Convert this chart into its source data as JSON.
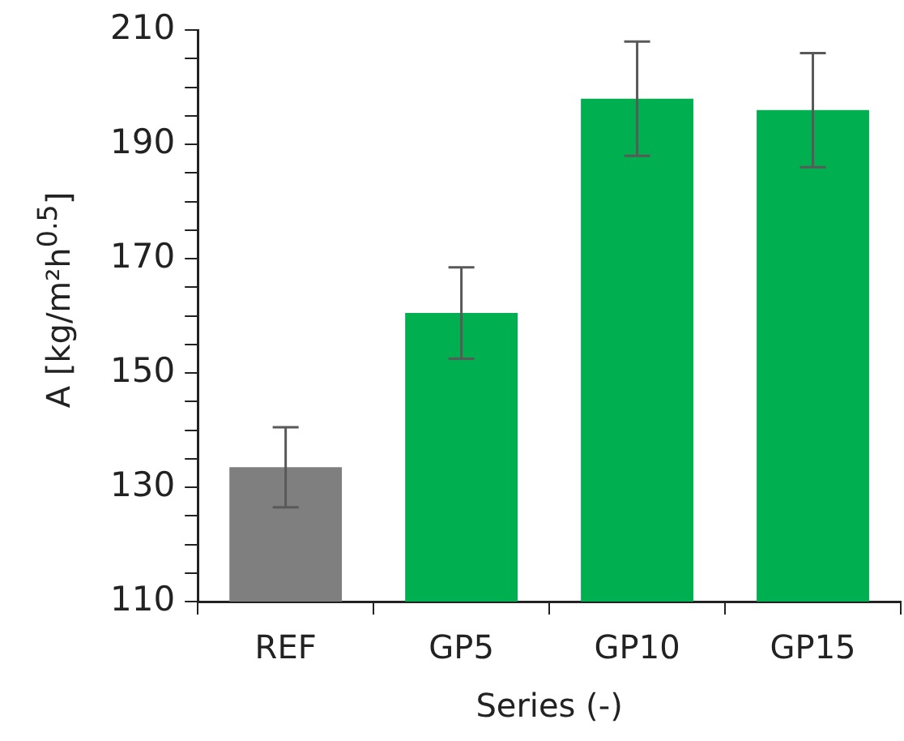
{
  "chart_data": {
    "type": "bar",
    "xlabel": "Series (-)",
    "ylabel": "A [kg/m²h$^{0.5}$]",
    "categories": [
      "REF",
      "GP5",
      "GP10",
      "GP15"
    ],
    "values": [
      133.5,
      160.5,
      198,
      196
    ],
    "colors": [
      "#7f7f7f",
      "#00b050",
      "#00b050",
      "#00b050"
    ],
    "errors": [
      7,
      8,
      10,
      10
    ],
    "ylim": [
      110,
      210
    ],
    "yticks": [
      110,
      {
        "value": 115,
        "label": null
      },
      {
        "value": 120,
        "label": null
      },
      {
        "value": 125,
        "label": null
      },
      130,
      {
        "value": 135,
        "label": null
      },
      {
        "value": 140,
        "label": null
      },
      {
        "value": 145,
        "label": null
      },
      150,
      {
        "value": 155,
        "label": null
      },
      {
        "value": 160,
        "label": null
      },
      {
        "value": 165,
        "label": null
      },
      170,
      {
        "value": 175,
        "label": null
      },
      {
        "value": 180,
        "label": null
      },
      {
        "value": 185,
        "label": null
      },
      190,
      {
        "value": 195,
        "label": null
      },
      {
        "value": 200,
        "label": null
      },
      {
        "value": 205,
        "label": null
      },
      210
    ],
    "grid": false,
    "legend": false
  }
}
